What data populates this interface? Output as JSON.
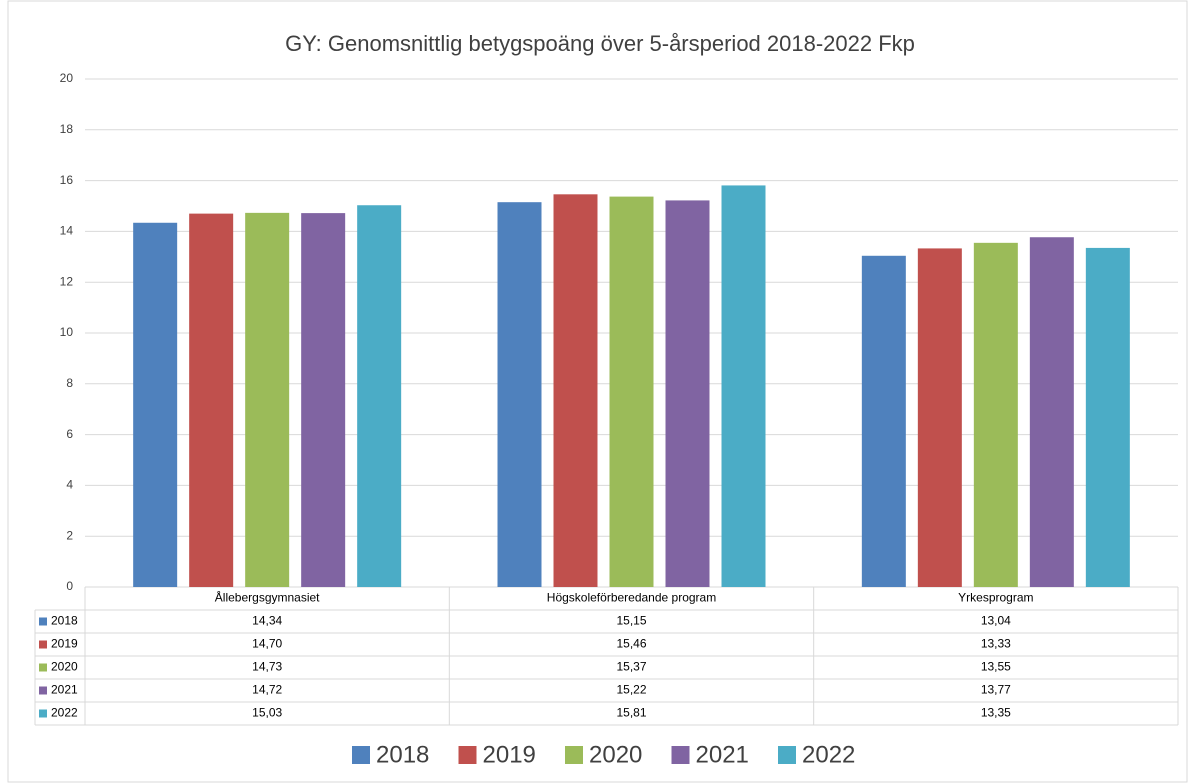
{
  "chart_data": {
    "type": "bar",
    "title": "GY: Genomsnittlig  betygspoäng  över 5-årsperiod 2018-2022 Fkp",
    "categories": [
      "Ållebergsgymnasiet",
      "Högskoleförberedande program",
      "Yrkesprogram"
    ],
    "series": [
      {
        "name": "2018",
        "color": "#4f81bd",
        "values": [
          14.34,
          15.15,
          13.04
        ],
        "value_labels": [
          "14,34",
          "15,15",
          "13,04"
        ]
      },
      {
        "name": "2019",
        "color": "#c0504d",
        "values": [
          14.7,
          15.46,
          13.33
        ],
        "value_labels": [
          "14,70",
          "15,46",
          "13,33"
        ]
      },
      {
        "name": "2020",
        "color": "#9bbb59",
        "values": [
          14.73,
          15.37,
          13.55
        ],
        "value_labels": [
          "14,73",
          "15,37",
          "13,55"
        ]
      },
      {
        "name": "2021",
        "color": "#8064a2",
        "values": [
          14.72,
          15.22,
          13.77
        ],
        "value_labels": [
          "14,72",
          "15,22",
          "13,77"
        ]
      },
      {
        "name": "2022",
        "color": "#4bacc6",
        "values": [
          15.03,
          15.81,
          13.35
        ],
        "value_labels": [
          "15,03",
          "15,81",
          "13,35"
        ]
      }
    ],
    "ylim": [
      0,
      20
    ],
    "yticks": [
      0,
      2,
      4,
      6,
      8,
      10,
      12,
      14,
      16,
      18,
      20
    ],
    "grid": true,
    "legend": "bottom"
  }
}
